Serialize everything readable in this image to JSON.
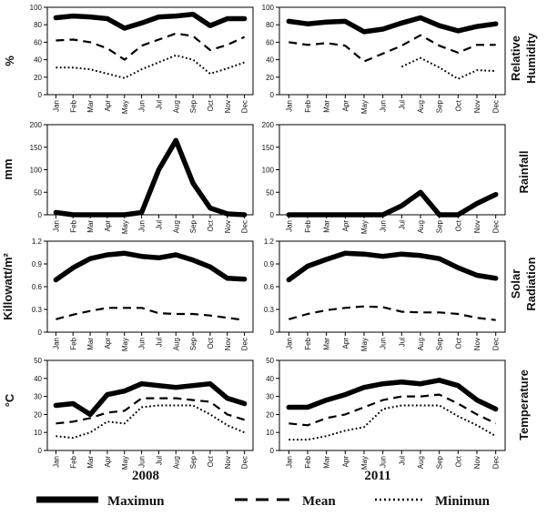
{
  "months": [
    "Jan",
    "Feb",
    "Mar",
    "Apr",
    "May",
    "Jun",
    "Jul",
    "Aug",
    "Sep",
    "Oct",
    "Nov",
    "Dec"
  ],
  "legend": [
    {
      "key": "max",
      "label": "Maximun"
    },
    {
      "key": "mean",
      "label": "Mean"
    },
    {
      "key": "min",
      "label": "Minimun"
    }
  ],
  "chart_data": [
    {
      "type": "line",
      "id": "rh-2008",
      "year": "2008",
      "row": "Relative Humidity",
      "ylabel": "%",
      "ylim": [
        0,
        100
      ],
      "yticks": [
        0,
        20,
        40,
        60,
        80,
        100
      ],
      "series": [
        {
          "name": "Maximun",
          "values": [
            88,
            90,
            89,
            87,
            76,
            82,
            89,
            90,
            92,
            79,
            87,
            87
          ]
        },
        {
          "name": "Mean",
          "values": [
            62,
            63,
            60,
            53,
            40,
            56,
            63,
            70,
            67,
            51,
            57,
            66
          ]
        },
        {
          "name": "Minimun",
          "values": [
            31,
            31,
            29,
            24,
            19,
            29,
            37,
            45,
            40,
            24,
            30,
            37
          ]
        }
      ]
    },
    {
      "type": "line",
      "id": "rh-2011",
      "year": "2011",
      "row": "Relative Humidity",
      "ylabel": "",
      "ylim": [
        0,
        100
      ],
      "yticks": [
        0,
        20,
        40,
        60,
        80,
        100
      ],
      "series": [
        {
          "name": "Maximun",
          "values": [
            84,
            81,
            83,
            84,
            72,
            75,
            82,
            88,
            79,
            73,
            78,
            81
          ]
        },
        {
          "name": "Mean",
          "values": [
            60,
            57,
            59,
            56,
            38,
            47,
            56,
            68,
            56,
            48,
            57,
            57
          ]
        },
        {
          "name": "Minimun",
          "values": [
            null,
            null,
            null,
            null,
            null,
            null,
            32,
            42,
            31,
            18,
            28,
            27
          ]
        }
      ]
    },
    {
      "type": "line",
      "id": "rain-2008",
      "year": "2008",
      "row": "Rainfall",
      "ylabel": "mm",
      "ylim": [
        0,
        200
      ],
      "yticks": [
        0,
        50,
        100,
        150,
        200
      ],
      "series": [
        {
          "name": "Maximun",
          "values": [
            5,
            0,
            0,
            0,
            0,
            5,
            100,
            165,
            70,
            15,
            2,
            0
          ]
        }
      ]
    },
    {
      "type": "line",
      "id": "rain-2011",
      "year": "2011",
      "row": "Rainfall",
      "ylabel": "",
      "ylim": [
        0,
        200
      ],
      "yticks": [
        0,
        50,
        100,
        150,
        200
      ],
      "series": [
        {
          "name": "Maximun",
          "values": [
            0,
            0,
            0,
            0,
            0,
            0,
            20,
            50,
            0,
            0,
            25,
            45
          ]
        }
      ]
    },
    {
      "type": "line",
      "id": "solar-2008",
      "year": "2008",
      "row": "Solar Radiation",
      "ylabel": "Killowatt/m²",
      "ylim": [
        0,
        1.2
      ],
      "yticks": [
        0,
        0.3,
        0.6,
        0.9,
        1.2
      ],
      "series": [
        {
          "name": "Maximun",
          "values": [
            0.69,
            0.85,
            0.97,
            1.02,
            1.04,
            1.0,
            0.98,
            1.02,
            0.95,
            0.86,
            0.71,
            0.7
          ]
        },
        {
          "name": "Mean",
          "values": [
            0.17,
            0.23,
            0.28,
            0.32,
            0.32,
            0.32,
            0.25,
            0.24,
            0.24,
            0.22,
            0.19,
            0.16
          ]
        }
      ]
    },
    {
      "type": "line",
      "id": "solar-2011",
      "year": "2011",
      "row": "Solar Radiation",
      "ylabel": "",
      "ylim": [
        0,
        1.2
      ],
      "yticks": [
        0,
        0.3,
        0.6,
        0.9,
        1.2
      ],
      "series": [
        {
          "name": "Maximun",
          "values": [
            0.69,
            0.87,
            0.96,
            1.04,
            1.03,
            1.0,
            1.03,
            1.01,
            0.97,
            0.85,
            0.75,
            0.71
          ]
        },
        {
          "name": "Mean",
          "values": [
            0.17,
            0.24,
            0.29,
            0.32,
            0.34,
            0.33,
            0.27,
            0.26,
            0.26,
            0.24,
            0.19,
            0.16
          ]
        }
      ]
    },
    {
      "type": "line",
      "id": "temp-2008",
      "year": "2008",
      "row": "Temperature",
      "ylabel": "°C",
      "ylim": [
        0,
        50
      ],
      "yticks": [
        0,
        10,
        20,
        30,
        40,
        50
      ],
      "series": [
        {
          "name": "Maximun",
          "values": [
            25,
            26,
            20,
            31,
            33,
            37,
            36,
            35,
            36,
            37,
            29,
            26
          ]
        },
        {
          "name": "Mean",
          "values": [
            15,
            16,
            18,
            21,
            22,
            29,
            29,
            29,
            28,
            27,
            20,
            17
          ]
        },
        {
          "name": "Minimun",
          "values": [
            8,
            7,
            10,
            16,
            15,
            24,
            25,
            25,
            25,
            20,
            14,
            10
          ]
        }
      ]
    },
    {
      "type": "line",
      "id": "temp-2011",
      "year": "2011",
      "row": "Temperature",
      "ylabel": "",
      "ylim": [
        0,
        50
      ],
      "yticks": [
        0,
        10,
        20,
        30,
        40,
        50
      ],
      "series": [
        {
          "name": "Maximun",
          "values": [
            24,
            24,
            28,
            31,
            35,
            37,
            38,
            37,
            39,
            36,
            28,
            23
          ]
        },
        {
          "name": "Mean",
          "values": [
            15,
            14,
            18,
            20,
            24,
            28,
            30,
            30,
            31,
            26,
            20,
            15
          ]
        },
        {
          "name": "Minimun",
          "values": [
            6,
            6,
            8,
            11,
            13,
            23,
            25,
            25,
            25,
            19,
            14,
            8
          ]
        }
      ]
    }
  ],
  "row_labels": {
    "rh": [
      "Relative",
      "Humidity"
    ],
    "rain": [
      "Rainfall"
    ],
    "solar": [
      "Solar",
      "Radiation"
    ],
    "temp": [
      "Temperature"
    ]
  },
  "years": [
    "2008",
    "2011"
  ],
  "axis_labels": {
    "rh": "%",
    "rain": "mm",
    "solar": "Killowatt/m²",
    "temp": "°C"
  },
  "style": {
    "line_color": "#000000",
    "background": "#ffffff"
  }
}
